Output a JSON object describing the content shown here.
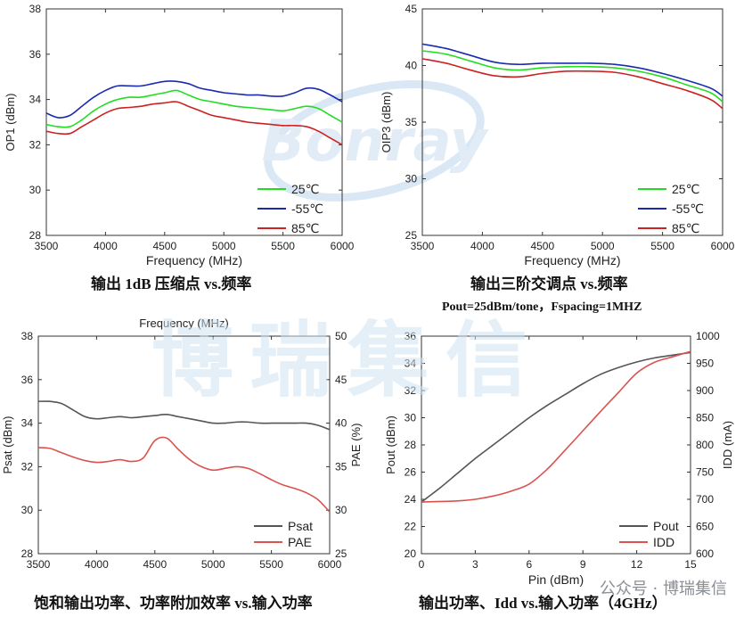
{
  "watermark": {
    "text": "博瑞集信",
    "logo_text": "Bonray"
  },
  "footer_text": "公众号 · 博瑞集信",
  "captions": {
    "c1": "输出 1dB 压缩点 vs.频率",
    "c2": "输出三阶交调点 vs.频率",
    "c2_sub": "Pout=25dBm/tone，Fspacing=1MHZ",
    "c3": "饱和输出功率、功率附加效率 vs.输入功率",
    "c4": "输出功率、Idd vs.输入功率（4GHz）"
  },
  "chart_data": [
    {
      "type": "line",
      "xlabel": "Frequency  (MHz)",
      "ylabel": "OP1 (dBm)",
      "xlim": [
        3500,
        6000
      ],
      "xticks": [
        3500,
        4000,
        4500,
        5000,
        5500,
        6000
      ],
      "ylim": [
        28,
        38
      ],
      "yticks": [
        28,
        30,
        32,
        34,
        36,
        38
      ],
      "legend_position": "bottom-right",
      "series": [
        {
          "name": "25℃",
          "color": "#22dd22",
          "x": [
            3500,
            3600,
            3700,
            3800,
            3900,
            4000,
            4100,
            4200,
            4300,
            4400,
            4500,
            4600,
            4700,
            4800,
            4900,
            5000,
            5100,
            5200,
            5300,
            5400,
            5500,
            5600,
            5700,
            5800,
            5900,
            6000
          ],
          "y": [
            32.9,
            32.8,
            32.8,
            33.1,
            33.5,
            33.8,
            34.0,
            34.1,
            34.1,
            34.2,
            34.3,
            34.4,
            34.2,
            34.0,
            33.9,
            33.8,
            33.7,
            33.65,
            33.6,
            33.55,
            33.5,
            33.6,
            33.7,
            33.6,
            33.3,
            33.0
          ]
        },
        {
          "name": "-55℃",
          "color": "#1a2bb0",
          "x": [
            3500,
            3600,
            3700,
            3800,
            3900,
            4000,
            4100,
            4200,
            4300,
            4400,
            4500,
            4600,
            4700,
            4800,
            4900,
            5000,
            5100,
            5200,
            5300,
            5400,
            5500,
            5600,
            5700,
            5800,
            5900,
            6000
          ],
          "y": [
            33.4,
            33.2,
            33.3,
            33.7,
            34.1,
            34.4,
            34.6,
            34.6,
            34.6,
            34.7,
            34.8,
            34.8,
            34.7,
            34.5,
            34.4,
            34.3,
            34.25,
            34.2,
            34.2,
            34.15,
            34.15,
            34.3,
            34.5,
            34.45,
            34.2,
            33.9
          ]
        },
        {
          "name": "85℃",
          "color": "#cc2222",
          "x": [
            3500,
            3600,
            3700,
            3800,
            3900,
            4000,
            4100,
            4200,
            4300,
            4400,
            4500,
            4600,
            4700,
            4800,
            4900,
            5000,
            5100,
            5200,
            5300,
            5400,
            5500,
            5600,
            5700,
            5800,
            5900,
            6000
          ],
          "y": [
            32.6,
            32.5,
            32.5,
            32.8,
            33.1,
            33.4,
            33.6,
            33.65,
            33.7,
            33.8,
            33.85,
            33.9,
            33.7,
            33.5,
            33.3,
            33.2,
            33.1,
            33.0,
            32.95,
            32.9,
            32.85,
            32.85,
            32.8,
            32.6,
            32.3,
            32.0
          ]
        }
      ]
    },
    {
      "type": "line",
      "xlabel": "Frequency  (MHz)",
      "ylabel": "OIP3  (dBm)",
      "xlim": [
        3500,
        6000
      ],
      "xticks": [
        3500,
        4000,
        4500,
        5000,
        5500,
        6000
      ],
      "ylim": [
        25,
        45
      ],
      "yticks": [
        25,
        30,
        35,
        40,
        45
      ],
      "legend_position": "bottom-right",
      "series": [
        {
          "name": "25℃",
          "color": "#22dd22",
          "x": [
            3500,
            3700,
            3900,
            4100,
            4300,
            4500,
            4700,
            4900,
            5100,
            5300,
            5500,
            5700,
            5900,
            6000
          ],
          "y": [
            41.3,
            41.0,
            40.4,
            39.8,
            39.6,
            39.8,
            39.9,
            39.9,
            39.8,
            39.5,
            39.0,
            38.3,
            37.6,
            36.8
          ]
        },
        {
          "name": "-55℃",
          "color": "#1a2bb0",
          "x": [
            3500,
            3700,
            3900,
            4100,
            4300,
            4500,
            4700,
            4900,
            5100,
            5300,
            5500,
            5700,
            5900,
            6000
          ],
          "y": [
            41.9,
            41.5,
            40.9,
            40.3,
            40.1,
            40.2,
            40.2,
            40.2,
            40.1,
            39.8,
            39.3,
            38.7,
            38.0,
            37.3
          ]
        },
        {
          "name": "85℃",
          "color": "#cc2222",
          "x": [
            3500,
            3700,
            3900,
            4100,
            4300,
            4500,
            4700,
            4900,
            5100,
            5300,
            5500,
            5700,
            5900,
            6000
          ],
          "y": [
            40.6,
            40.2,
            39.6,
            39.1,
            39.0,
            39.3,
            39.5,
            39.5,
            39.4,
            39.0,
            38.4,
            37.8,
            37.0,
            36.2
          ]
        }
      ]
    },
    {
      "type": "line",
      "xlabel": "Frequency  (MHz)",
      "ylabel": "Psat (dBm)",
      "y2label": "PAE (%)",
      "xlim": [
        3500,
        6000
      ],
      "xticks": [
        3500,
        4000,
        4500,
        5000,
        5500,
        6000
      ],
      "ylim": [
        28,
        38
      ],
      "yticks": [
        28,
        30,
        32,
        34,
        36,
        38
      ],
      "y2lim": [
        25,
        50
      ],
      "y2ticks": [
        25,
        30,
        35,
        40,
        45,
        50
      ],
      "legend_position": "bottom-right",
      "series": [
        {
          "name": "Psat",
          "axis": "left",
          "color": "#555555",
          "x": [
            3500,
            3600,
            3700,
            3800,
            3900,
            4000,
            4100,
            4200,
            4300,
            4400,
            4500,
            4600,
            4700,
            4800,
            4900,
            5000,
            5100,
            5200,
            5300,
            5400,
            5500,
            5600,
            5700,
            5800,
            5900,
            6000
          ],
          "y": [
            35.0,
            35.0,
            34.9,
            34.6,
            34.3,
            34.2,
            34.25,
            34.3,
            34.25,
            34.3,
            34.35,
            34.4,
            34.3,
            34.2,
            34.1,
            34.0,
            34.0,
            34.05,
            34.05,
            34.0,
            34.0,
            34.0,
            34.0,
            34.0,
            33.9,
            33.7
          ]
        },
        {
          "name": "PAE",
          "axis": "right",
          "color": "#d9534f",
          "x": [
            3500,
            3600,
            3700,
            3800,
            3900,
            4000,
            4100,
            4200,
            4300,
            4400,
            4500,
            4600,
            4700,
            4800,
            4900,
            5000,
            5100,
            5200,
            5300,
            5400,
            5500,
            5600,
            5700,
            5800,
            5900,
            6000
          ],
          "y": [
            37.2,
            37.1,
            36.6,
            36.1,
            35.7,
            35.5,
            35.6,
            35.8,
            35.6,
            36.0,
            38.0,
            38.3,
            37.0,
            35.8,
            35.0,
            34.6,
            34.8,
            35.0,
            34.8,
            34.2,
            33.5,
            32.9,
            32.5,
            32.0,
            31.2,
            29.8
          ]
        }
      ]
    },
    {
      "type": "line",
      "xlabel": "Pin (dBm)",
      "ylabel": "Pout (dBm)",
      "y2label": "IDD (mA)",
      "xlim": [
        0,
        15
      ],
      "xticks": [
        0,
        3,
        6,
        9,
        12,
        15
      ],
      "ylim": [
        20,
        36
      ],
      "yticks": [
        20,
        22,
        24,
        26,
        28,
        30,
        32,
        34,
        36
      ],
      "y2lim": [
        600,
        1000
      ],
      "y2ticks": [
        600,
        650,
        700,
        750,
        800,
        850,
        900,
        950,
        1000
      ],
      "legend_position": "bottom-right",
      "series": [
        {
          "name": "Pout",
          "axis": "left",
          "color": "#555555",
          "x": [
            0,
            1,
            2,
            3,
            4,
            5,
            6,
            7,
            8,
            9,
            10,
            11,
            12,
            13,
            14,
            15
          ],
          "y": [
            23.8,
            24.8,
            25.9,
            27.0,
            28.0,
            29.0,
            30.0,
            30.9,
            31.7,
            32.5,
            33.2,
            33.7,
            34.1,
            34.4,
            34.6,
            34.8
          ]
        },
        {
          "name": "IDD",
          "axis": "right",
          "color": "#d9534f",
          "x": [
            0,
            1,
            2,
            3,
            4,
            5,
            6,
            7,
            8,
            9,
            10,
            11,
            12,
            13,
            14,
            15
          ],
          "y": [
            695,
            696,
            697,
            700,
            706,
            715,
            728,
            755,
            790,
            826,
            862,
            897,
            932,
            952,
            962,
            972
          ]
        }
      ]
    }
  ]
}
